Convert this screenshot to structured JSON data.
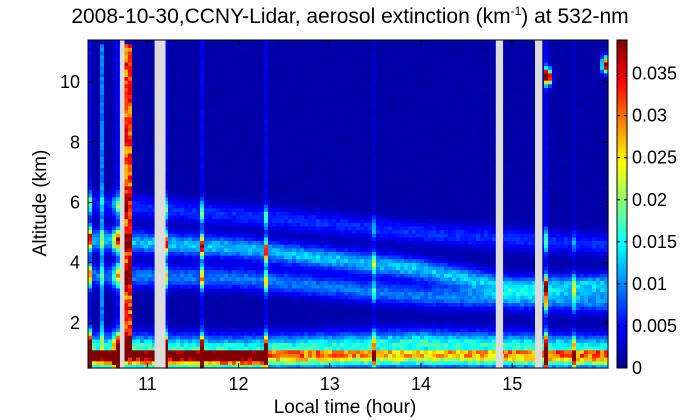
{
  "chart_data": {
    "type": "heatmap",
    "title": {
      "prefix": "2008-10-30,CCNY-Lidar, aerosol extinction (km",
      "superscript": "-1",
      "suffix": ") at 532-nm"
    },
    "xlabel": "Local time (hour)",
    "ylabel": "Altitude (km)",
    "xlim": [
      10.35,
      16.05
    ],
    "ylim": [
      0.5,
      11.4
    ],
    "x_ticks": [
      11,
      12,
      13,
      14,
      15
    ],
    "y_ticks": [
      2,
      4,
      6,
      8,
      10
    ],
    "colorbar": {
      "range": [
        0,
        0.039
      ],
      "ticks": [
        0,
        0.005,
        0.01,
        0.015,
        0.02,
        0.025,
        0.03,
        0.035
      ],
      "tick_labels": [
        "0",
        "0.005",
        "0.01",
        "0.015",
        "0.02",
        "0.025",
        "0.03",
        "0.035"
      ],
      "colormap": "jet"
    },
    "data_gaps_hours": [
      [
        10.7,
        10.75
      ],
      [
        11.08,
        11.2
      ],
      [
        14.82,
        14.9
      ],
      [
        15.25,
        15.33
      ]
    ],
    "layers": [
      {
        "kind": "boundary_layer",
        "altitude_km": [
          [
            10.35,
            1.2
          ],
          [
            12.0,
            1.1
          ],
          [
            14.0,
            1.3
          ],
          [
            16.05,
            1.1
          ]
        ],
        "extinction": 0.015
      },
      {
        "kind": "aerosol_layer",
        "altitude_km": [
          [
            10.35,
            4.8
          ],
          [
            12.0,
            4.5
          ],
          [
            14.0,
            3.8
          ],
          [
            15.0,
            3.2
          ],
          [
            16.05,
            3.3
          ]
        ],
        "extinction": 0.011
      },
      {
        "kind": "aerosol_layer",
        "altitude_km": [
          [
            10.35,
            3.6
          ],
          [
            12.0,
            3.5
          ],
          [
            14.0,
            2.9
          ],
          [
            15.0,
            2.8
          ],
          [
            16.05,
            2.7
          ]
        ],
        "extinction": 0.008
      },
      {
        "kind": "aerosol_layer",
        "altitude_km": [
          [
            10.35,
            6.0
          ],
          [
            12.0,
            5.6
          ],
          [
            14.0,
            5.0
          ],
          [
            16.05,
            4.6
          ]
        ],
        "extinction": 0.005
      }
    ],
    "surface_layer_extinction": 0.017,
    "near_surface_high_until_hour": 12.3,
    "plumes": [
      {
        "t_start": 10.75,
        "t_end": 10.82,
        "alt_min": 1.0,
        "alt_max": 11.3,
        "extinction": 0.03
      },
      {
        "t_start": 10.5,
        "t_end": 10.53,
        "alt_min": 1.0,
        "alt_max": 11.3,
        "extinction": 0.008
      }
    ],
    "clouds": [
      {
        "time": 15.4,
        "altitude_km": 10.2,
        "extinction": 0.035
      },
      {
        "time": 16.02,
        "altitude_km": 10.6,
        "extinction": 0.037
      }
    ],
    "background_extinction": 0.0015
  }
}
